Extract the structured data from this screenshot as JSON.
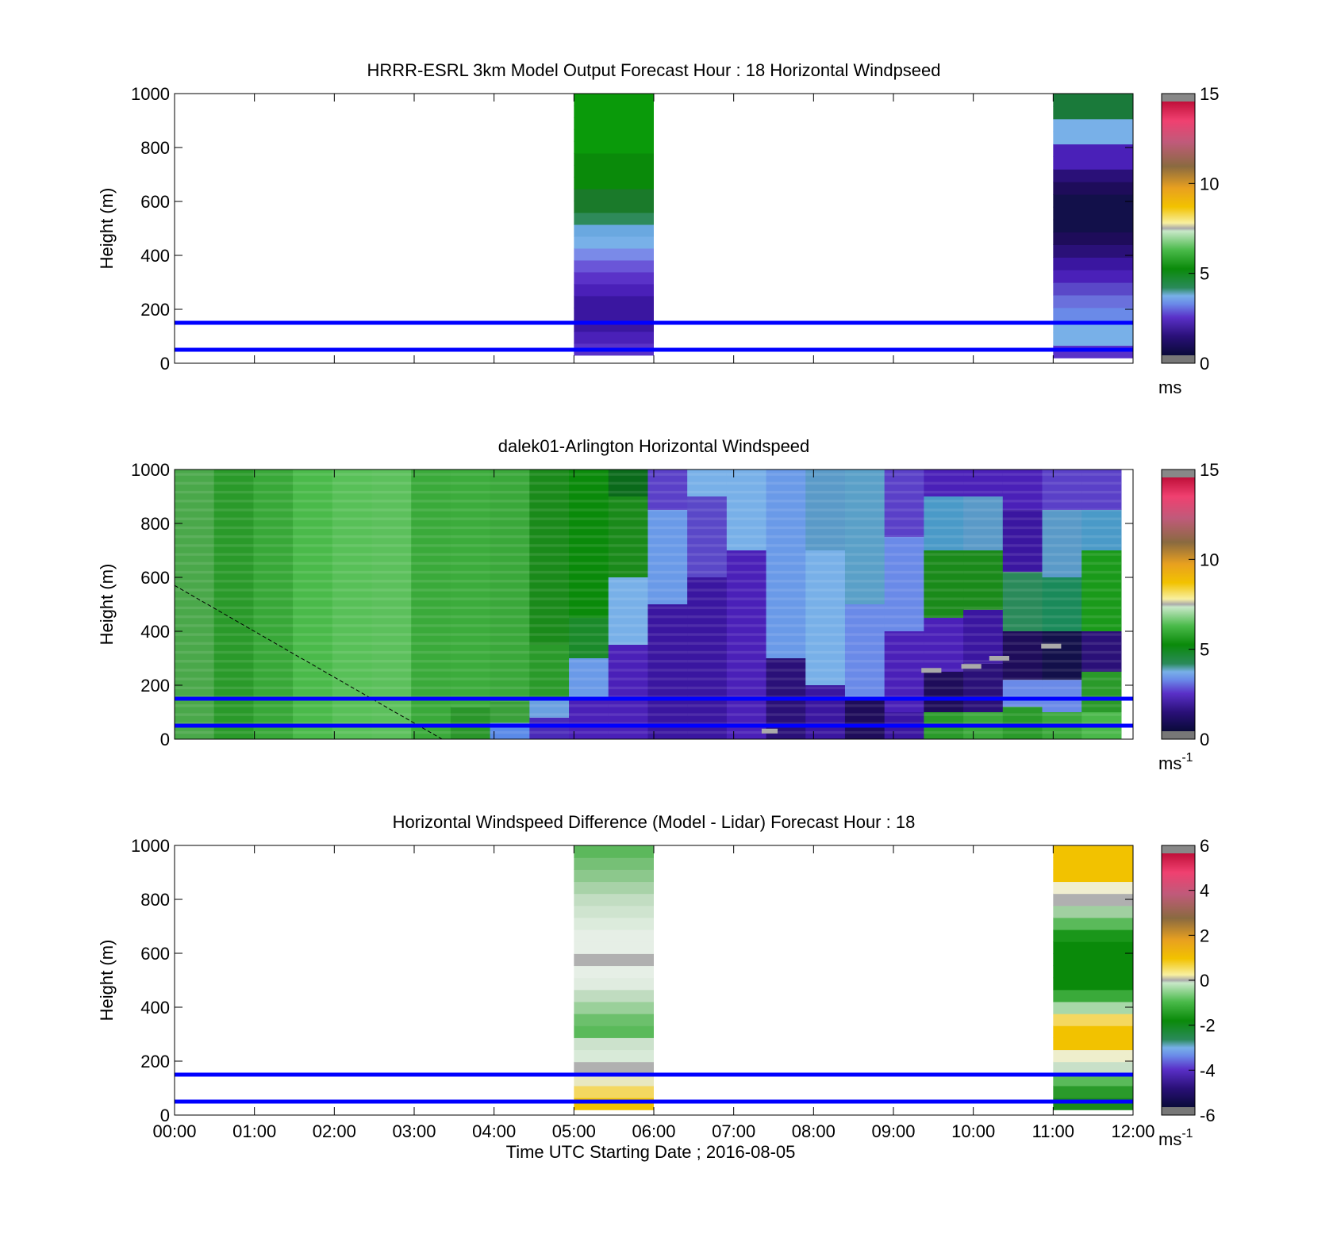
{
  "figure": {
    "xlabel": "Time UTC  Starting Date ; 2016-08-05"
  },
  "chart_data": [
    {
      "type": "heatmap",
      "title": "HRRR-ESRL 3km Model Output   Forecast Hour : 18 Horizontal Windpseed",
      "ylabel": "Height (m)",
      "xlim_hours": [
        0,
        12
      ],
      "ylim": [
        0,
        1000
      ],
      "yticks": [
        0,
        200,
        400,
        600,
        800,
        1000
      ],
      "x_ticks_shown": false,
      "reference_lines_m": [
        150,
        50
      ],
      "reference_line_color": "#0000ff",
      "colorbar": {
        "range": [
          0,
          15
        ],
        "ticks": [
          0,
          5,
          10,
          15
        ],
        "label": "ms",
        "label_sup": ""
      },
      "columns": [
        {
          "x_start": 5,
          "x_end": 6,
          "y_start": 30,
          "y_end": 1000,
          "colors": [
            "#5a32c8",
            "#4a20b8",
            "#3a16a0",
            "#3a16a0",
            "#3a16a0",
            "#4a20b8",
            "#5a32c8",
            "#6a56d8",
            "#7a8ae8",
            "#78b0e8",
            "#6aa8e0",
            "#2e8a5a",
            "#1a7a2a",
            "#1a7a2a",
            "#0a8a0a",
            "#0a8a0a",
            "#0a8a0a",
            "#0a9a0a",
            "#0a9a0a",
            "#0a9a0a",
            "#0a9a0a",
            "#0a9a0a"
          ]
        },
        {
          "x_start": 11,
          "x_end": 12,
          "y_start": 20,
          "y_end": 1000,
          "colors": [
            "#5a32c8",
            "#78b0e8",
            "#78b0e8",
            "#6a8ae8",
            "#6a70dc",
            "#5a48c8",
            "#4a20b8",
            "#3a16a0",
            "#2a1078",
            "#1e0c5a",
            "#12104a",
            "#12104a",
            "#12104a",
            "#1e0c5a",
            "#2a1078",
            "#4a20b8",
            "#4a20b8",
            "#78b0e8",
            "#78b0e8",
            "#1a7a3a",
            "#1a7a3a"
          ]
        }
      ]
    },
    {
      "type": "heatmap",
      "title": "dalek01-Arlington  Horizontal Windspeed",
      "ylabel": "Height (m)",
      "xlim_hours": [
        0,
        12
      ],
      "ylim": [
        0,
        1000
      ],
      "yticks": [
        0,
        200,
        400,
        600,
        800,
        1000
      ],
      "x_ticks_shown": false,
      "reference_lines_m": [
        150,
        50
      ],
      "reference_line_color": "#0000ff",
      "colorbar": {
        "range": [
          0,
          15
        ],
        "ticks": [
          0,
          5,
          10,
          15
        ],
        "label": "ms",
        "label_sup": "-1"
      },
      "data_xlim_hours": [
        0,
        11.85
      ],
      "profiles": [
        {
          "x": 0.25,
          "boundaries": [],
          "colors": [
            "#4aa84a"
          ]
        },
        {
          "x": 0.75,
          "boundaries": [],
          "colors": [
            "#2a9a2a"
          ]
        },
        {
          "x": 1.25,
          "boundaries": [],
          "colors": [
            "#38a838"
          ]
        },
        {
          "x": 1.75,
          "boundaries": [],
          "colors": [
            "#4aba4a"
          ]
        },
        {
          "x": 2.25,
          "boundaries": [],
          "colors": [
            "#58c058"
          ]
        },
        {
          "x": 2.75,
          "boundaries": [],
          "colors": [
            "#5cc05c"
          ]
        },
        {
          "x": 3.25,
          "boundaries": [],
          "colors": [
            "#3aaa3a"
          ]
        },
        {
          "x": 3.75,
          "boundaries": [
            120
          ],
          "colors": [
            "#2a962a",
            "#3cac3c"
          ]
        },
        {
          "x": 4.25,
          "boundaries": [
            60,
            140
          ],
          "colors": [
            "#5a8ae8",
            "#3aa03a",
            "#3aa83a"
          ]
        },
        {
          "x": 4.75,
          "boundaries": [
            80,
            150,
            350
          ],
          "colors": [
            "#4a2ab8",
            "#6aa0e0",
            "#2a9a2a",
            "#1a8a1a"
          ]
        },
        {
          "x": 5.25,
          "boundaries": [
            150,
            300,
            450
          ],
          "colors": [
            "#4a20b8",
            "#6a9ae8",
            "#1a8a2a",
            "#0a8a0a"
          ]
        },
        {
          "x": 5.75,
          "boundaries": [
            350,
            600,
            900
          ],
          "colors": [
            "#4a20b8",
            "#78b0e8",
            "#1a8a1a",
            "#0a6a1a"
          ]
        },
        {
          "x": 6.25,
          "boundaries": [
            500,
            850
          ],
          "colors": [
            "#3a16a0",
            "#6a9ae8",
            "#5a40c8"
          ]
        },
        {
          "x": 6.75,
          "boundaries": [
            600,
            900
          ],
          "colors": [
            "#3a16a0",
            "#5a48c8",
            "#78b0e8"
          ]
        },
        {
          "x": 7.25,
          "boundaries": [
            700
          ],
          "colors": [
            "#4a20b8",
            "#78b0e8"
          ]
        },
        {
          "x": 7.75,
          "boundaries": [
            300
          ],
          "colors": [
            "#2a1078",
            "#6a9ae8"
          ]
        },
        {
          "x": 8.25,
          "boundaries": [
            200,
            700
          ],
          "colors": [
            "#3a16a0",
            "#78b0e8",
            "#5a9ac8"
          ]
        },
        {
          "x": 8.75,
          "boundaries": [
            150,
            500
          ],
          "colors": [
            "#1e0c5a",
            "#6a8ae8",
            "#5aa0c8"
          ]
        },
        {
          "x": 9.25,
          "boundaries": [
            100,
            400,
            750
          ],
          "colors": [
            "#3a16a0",
            "#4a20b8",
            "#6a8ae8",
            "#5a40c8"
          ]
        },
        {
          "x": 9.75,
          "boundaries": [
            100,
            250,
            450,
            700,
            900
          ],
          "colors": [
            "#2a9a2a",
            "#1e0c5a",
            "#4a20b8",
            "#1a8a1a",
            "#4a9ac8",
            "#4a20b8"
          ]
        },
        {
          "x": 10.25,
          "boundaries": [
            100,
            280,
            480,
            700,
            900
          ],
          "colors": [
            "#3aa83a",
            "#2a1078",
            "#3a16a0",
            "#1a8a1a",
            "#5a9ac8",
            "#4a20b8"
          ]
        },
        {
          "x": 10.75,
          "boundaries": [
            120,
            220,
            400,
            620,
            850
          ],
          "colors": [
            "#2a9a2a",
            "#6a8ae8",
            "#1e0c5a",
            "#2a8a5a",
            "#3a16a0",
            "#4a20b8"
          ]
        },
        {
          "x": 11.25,
          "boundaries": [
            100,
            220,
            400,
            600,
            850
          ],
          "colors": [
            "#3aa83a",
            "#6a8ae8",
            "#12104a",
            "#1a8a5a",
            "#5a9ac8",
            "#5a40c8"
          ]
        },
        {
          "x": 11.75,
          "boundaries": [
            100,
            250,
            400,
            700,
            850
          ],
          "colors": [
            "#4ab84a",
            "#2a9a2a",
            "#2a1078",
            "#1a9a1a",
            "#4a9ac8",
            "#5a40c8"
          ]
        }
      ],
      "dashed_line": {
        "points": [
          [
            0,
            570
          ],
          [
            3.35,
            0
          ]
        ],
        "color": "#000000"
      },
      "gray_marks": [
        {
          "x_start": 7.35,
          "x_end": 7.55,
          "y": 30
        },
        {
          "x_start": 9.35,
          "x_end": 9.6,
          "y": 255
        },
        {
          "x_start": 9.85,
          "x_end": 10.1,
          "y": 270
        },
        {
          "x_start": 10.2,
          "x_end": 10.45,
          "y": 300
        },
        {
          "x_start": 10.85,
          "x_end": 11.1,
          "y": 345
        }
      ]
    },
    {
      "type": "heatmap",
      "title": "Horizontal Windspeed Difference (Model - Lidar) Forecast Hour : 18",
      "ylabel": "Height (m)",
      "xlim_hours": [
        0,
        12
      ],
      "ylim": [
        0,
        1000
      ],
      "yticks": [
        0,
        200,
        400,
        600,
        800,
        1000
      ],
      "xtick_labels": [
        "00:00",
        "01:00",
        "02:00",
        "03:00",
        "04:00",
        "05:00",
        "06:00",
        "07:00",
        "08:00",
        "09:00",
        "10:00",
        "11:00",
        "12:00"
      ],
      "reference_lines_m": [
        150,
        50
      ],
      "reference_line_color": "#0000ff",
      "colorbar": {
        "range": [
          -6,
          6
        ],
        "ticks": [
          -6,
          -4,
          -2,
          0,
          2,
          4,
          6
        ],
        "label": "ms",
        "label_sup": "-1"
      },
      "columns": [
        {
          "x_start": 5,
          "x_end": 6,
          "y_start": 20,
          "y_end": 1000,
          "colors": [
            "#f2c200",
            "#f4d860",
            "#e8e8c0",
            "#b0b0b0",
            "#d8ead8",
            "#cce2cc",
            "#5aba5a",
            "#6cc06c",
            "#9ad09a",
            "#c0dcc0",
            "#e0ece0",
            "#e6efe6",
            "#b0b0b0",
            "#e6efe6",
            "#e6efe6",
            "#dcebdc",
            "#cfe4cf",
            "#c2ddc2",
            "#a8d2a8",
            "#8cc88c",
            "#76c076",
            "#5cb85c"
          ]
        },
        {
          "x_start": 11,
          "x_end": 12,
          "y_start": 20,
          "y_end": 1000,
          "colors": [
            "#1a8a1a",
            "#2a9a2a",
            "#5aba5a",
            "#c8e0c8",
            "#eeeecc",
            "#f2c200",
            "#f2c200",
            "#f4d860",
            "#a8d8a8",
            "#3aaa3a",
            "#0a8a0a",
            "#0a8a0a",
            "#0a8a0a",
            "#0a8a0a",
            "#1a961a",
            "#5aba5a",
            "#a0d0a0",
            "#b0b0b0",
            "#f0eed0",
            "#f2c200",
            "#f2c200",
            "#f2c200"
          ]
        }
      ]
    }
  ]
}
